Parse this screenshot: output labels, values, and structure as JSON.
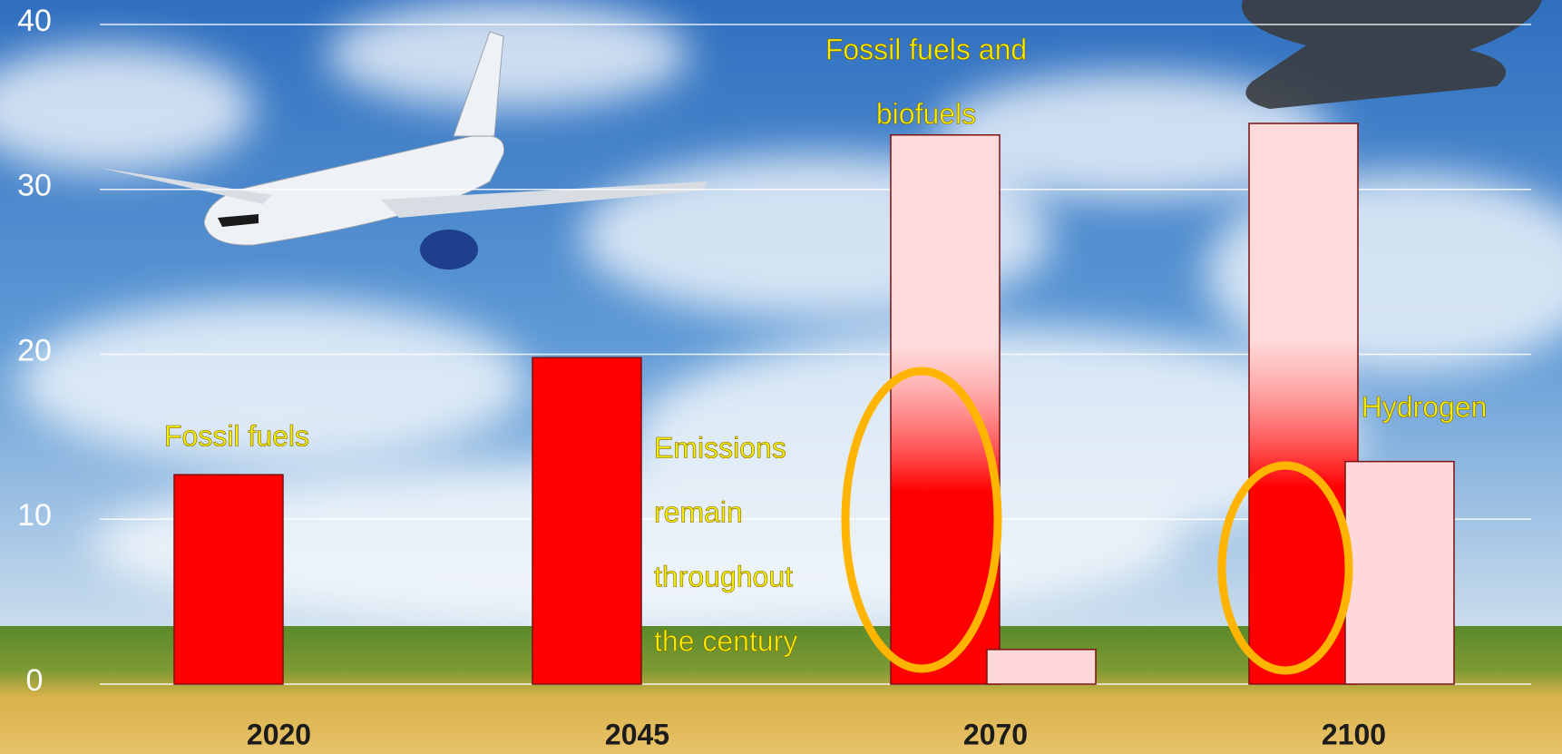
{
  "chart_data": {
    "type": "bar",
    "categories": [
      "2020",
      "2045",
      "2070",
      "2100"
    ],
    "series": [
      {
        "color": "#ff0000",
        "values": [
          12.7,
          19.8,
          33.3,
          34.0
        ]
      },
      {
        "color": "#ffd8dc",
        "values": [
          null,
          null,
          2.1,
          13.5
        ]
      }
    ],
    "ylim": [
      0,
      40
    ],
    "yticks": [
      0,
      10,
      20,
      30,
      40
    ],
    "grid": true,
    "annotations": [
      {
        "lines": [
          "Fossil fuels"
        ]
      },
      {
        "lines": [
          "Emissions",
          "remain",
          "throughout",
          "the century"
        ]
      },
      {
        "lines": [
          "Fossil fuels and",
          "biofuels"
        ]
      },
      {
        "lines": [
          "Hydrogen"
        ]
      }
    ]
  }
}
